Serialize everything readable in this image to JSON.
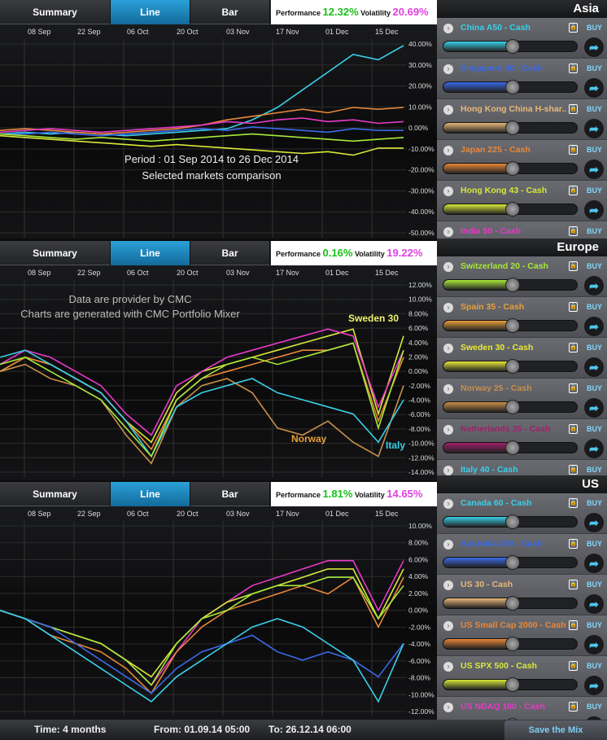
{
  "tabs": [
    "Summary",
    "Line",
    "Bar"
  ],
  "perf_label": "Performance",
  "vol_label": "Volatility",
  "dates": [
    "08 Sep",
    "22 Sep",
    "06 Oct",
    "20 Oct",
    "03 Nov",
    "17 Nov",
    "01 Dec",
    "15 Dec"
  ],
  "colors": {
    "cyan": "#3ad0e8",
    "blue": "#3a6ae8",
    "orange": "#e8883a",
    "pink": "#e83ac8",
    "yellow": "#d8e83a",
    "lime": "#a8e83a",
    "gold": "#d8a83a",
    "purple": "#8a3aa8",
    "tan": "#c8904a"
  },
  "panels": [
    {
      "performance": "12.32%",
      "volatility": "20.69%",
      "annotation1": "Period : 01 Sep 2014  to 26 Dec 2014",
      "annotation2": "Selected markets comparison",
      "chart_data": {
        "type": "line",
        "x_labels": [
          "08 Sep",
          "22 Sep",
          "06 Oct",
          "20 Oct",
          "03 Nov",
          "17 Nov",
          "01 Dec",
          "15 Dec"
        ],
        "y_ticks": [
          "40.00%",
          "30.00%",
          "20.00%",
          "10.00%",
          "0.00%",
          "-10.00%",
          "-20.00%",
          "-30.00%",
          "-40.00%",
          "-50.00%"
        ],
        "ylim": [
          -55,
          50
        ],
        "series": [
          {
            "color": "#3ad0e8",
            "values": [
              0,
              1,
              0,
              1,
              0,
              -1,
              0,
              1,
              2,
              3,
              8,
              15,
              25,
              35,
              45,
              42,
              50
            ]
          },
          {
            "color": "#e8883a",
            "values": [
              2,
              3,
              2,
              1,
              0,
              1,
              2,
              3,
              5,
              8,
              10,
              12,
              14,
              12,
              15,
              14,
              15
            ]
          },
          {
            "color": "#e83ac8",
            "values": [
              1,
              2,
              3,
              2,
              1,
              2,
              3,
              4,
              5,
              7,
              6,
              8,
              9,
              7,
              8,
              6,
              7
            ]
          },
          {
            "color": "#3a6ae8",
            "values": [
              0,
              0,
              1,
              0,
              -1,
              0,
              1,
              2,
              3,
              2,
              4,
              3,
              2,
              1,
              3,
              2,
              2
            ]
          },
          {
            "color": "#a8e83a",
            "values": [
              0,
              -1,
              -2,
              -3,
              -2,
              -3,
              -4,
              -3,
              -2,
              -1,
              0,
              -1,
              -2,
              -3,
              -4,
              -3,
              -2
            ]
          },
          {
            "color": "#d8e83a",
            "values": [
              -1,
              -2,
              -3,
              -4,
              -5,
              -6,
              -7,
              -6,
              -7,
              -8,
              -9,
              -10,
              -11,
              -10,
              -12,
              -8,
              -8
            ]
          }
        ]
      }
    },
    {
      "performance": "0.16%",
      "volatility": "19.22%",
      "annotation1": "Data are provider by CMC",
      "annotation2": "Charts are generated with CMC Portfolio Mixer",
      "labels": [
        "Sweden 30",
        "Norway",
        "Italy"
      ],
      "chart_data": {
        "type": "line",
        "x_labels": [
          "08 Sep",
          "22 Sep",
          "06 Oct",
          "20 Oct",
          "03 Nov",
          "17 Nov",
          "01 Dec",
          "15 Dec"
        ],
        "y_ticks": [
          "12.00%",
          "10.00%",
          "8.00%",
          "6.00%",
          "4.00%",
          "2.00%",
          "0.00%",
          "-2.00%",
          "-4.00%",
          "-6.00%",
          "-8.00%",
          "-10.00%",
          "-12.00%",
          "-14.00%"
        ],
        "ylim": [
          -14,
          12
        ],
        "series": [
          {
            "color": "#d8e83a",
            "values": [
              0,
              2,
              1,
              -1,
              -3,
              -7,
              -10,
              -3,
              0,
              1,
              2,
              3,
              4,
              5,
              6,
              -6,
              5
            ]
          },
          {
            "color": "#e83ac8",
            "values": [
              1,
              3,
              2,
              0,
              -2,
              -6,
              -9,
              -2,
              0,
              2,
              3,
              4,
              5,
              6,
              5,
              -5,
              3
            ]
          },
          {
            "color": "#e8883a",
            "values": [
              0,
              2,
              1,
              -1,
              -3,
              -7,
              -11,
              -4,
              -1,
              0,
              1,
              2,
              3,
              3,
              4,
              -7,
              2
            ]
          },
          {
            "color": "#c8904a",
            "values": [
              0,
              1,
              -1,
              -2,
              -4,
              -9,
              -13,
              -5,
              -2,
              -1,
              -3,
              -8,
              -9,
              -7,
              -10,
              -12,
              -2
            ]
          },
          {
            "color": "#3ad0e8",
            "values": [
              2,
              3,
              1,
              -1,
              -3,
              -7,
              -12,
              -5,
              -3,
              -2,
              -1,
              -3,
              -4,
              -5,
              -6,
              -10,
              -4
            ]
          },
          {
            "color": "#a8e83a",
            "values": [
              1,
              2,
              0,
              -2,
              -4,
              -8,
              -12,
              -4,
              -1,
              1,
              2,
              1,
              2,
              3,
              4,
              -8,
              3
            ]
          }
        ]
      }
    },
    {
      "performance": "1.81%",
      "volatility": "14.65%",
      "chart_data": {
        "type": "line",
        "x_labels": [
          "08 Sep",
          "22 Sep",
          "06 Oct",
          "20 Oct",
          "03 Nov",
          "17 Nov",
          "01 Dec",
          "15 Dec"
        ],
        "y_ticks": [
          "10.00%",
          "8.00%",
          "6.00%",
          "4.00%",
          "2.00%",
          "0.00%",
          "-2.00%",
          "-4.00%",
          "-6.00%",
          "-8.00%",
          "-10.00%",
          "-12.00%"
        ],
        "ylim": [
          -12,
          10
        ],
        "series": [
          {
            "color": "#e83ac8",
            "values": [
              0,
              -1,
              -2,
              -3,
              -4,
              -6,
              -9,
              -5,
              -1,
              1,
              3,
              4,
              5,
              6,
              6,
              0,
              6
            ]
          },
          {
            "color": "#d8e83a",
            "values": [
              0,
              -1,
              -2,
              -3,
              -4,
              -6,
              -8,
              -4,
              -1,
              1,
              2,
              3,
              4,
              5,
              5,
              -1,
              5
            ]
          },
          {
            "color": "#e8883a",
            "values": [
              0,
              -1,
              -3,
              -4,
              -5,
              -7,
              -10,
              -5,
              -2,
              0,
              1,
              2,
              3,
              2,
              4,
              -2,
              4
            ]
          },
          {
            "color": "#a8e83a",
            "values": [
              0,
              -1,
              -2,
              -3,
              -4,
              -6,
              -9,
              -4,
              -1,
              0,
              2,
              3,
              3,
              4,
              4,
              -1,
              3
            ]
          },
          {
            "color": "#3a6ae8",
            "values": [
              0,
              -1,
              -2,
              -4,
              -6,
              -8,
              -10,
              -7,
              -5,
              -4,
              -3,
              -5,
              -6,
              -5,
              -6,
              -8,
              -4
            ]
          },
          {
            "color": "#3ad0e8",
            "values": [
              0,
              -1,
              -3,
              -5,
              -7,
              -9,
              -11,
              -8,
              -6,
              -4,
              -2,
              -1,
              -2,
              -4,
              -6,
              -11,
              -4
            ]
          }
        ]
      }
    }
  ],
  "sides": [
    {
      "title": "Asia",
      "markets": [
        {
          "name": "China A50 - Cash",
          "color": "#3ad0e8",
          "level": 0.52,
          "buy": "BUY"
        },
        {
          "name": "Singapore 30 - Cash",
          "color": "#3a6ae8",
          "level": 0.52,
          "buy": "BUY"
        },
        {
          "name": "Hong Kong China H-shar...",
          "color": "#e8b87a",
          "level": 0.52,
          "buy": "BUY"
        },
        {
          "name": "Japan 225 - Cash",
          "color": "#e8883a",
          "level": 0.52,
          "buy": "BUY"
        },
        {
          "name": "Hong Kong 43 - Cash",
          "color": "#d8e83a",
          "level": 0.52,
          "buy": "BUY"
        },
        {
          "name": "India 50 - Cash",
          "color": "#e83ac8",
          "level": 0.52,
          "buy": "BUY"
        }
      ]
    },
    {
      "title": "Europe",
      "markets": [
        {
          "name": "Switzerland 20 - Cash",
          "color": "#a8e83a",
          "level": 0.52,
          "buy": "BUY"
        },
        {
          "name": "Spain 35 - Cash",
          "color": "#e8a03a",
          "level": 0.52,
          "buy": "BUY"
        },
        {
          "name": "Sweden 30 - Cash",
          "color": "#e8e83a",
          "level": 0.52,
          "buy": "BUY"
        },
        {
          "name": "Norway 25 - Cash",
          "color": "#c8904a",
          "level": 0.52,
          "buy": "BUY"
        },
        {
          "name": "Netherlands 25 - Cash",
          "color": "#a0206a",
          "level": 0.52,
          "buy": "BUY"
        },
        {
          "name": "Italy 40 - Cash",
          "color": "#3ad0e8",
          "level": 0.52,
          "buy": "BUY"
        }
      ]
    },
    {
      "title": "US",
      "markets": [
        {
          "name": "Canada 60 - Cash",
          "color": "#3ad0e8",
          "level": 0.52,
          "buy": "BUY"
        },
        {
          "name": "Australia 200 - Cash",
          "color": "#3a6ae8",
          "level": 0.52,
          "buy": "BUY"
        },
        {
          "name": "US 30 - Cash",
          "color": "#e8b87a",
          "level": 0.52,
          "buy": "BUY"
        },
        {
          "name": "US Small Cap 2000 - Cash",
          "color": "#e8883a",
          "level": 0.52,
          "buy": "BUY"
        },
        {
          "name": "US SPX 500 - Cash",
          "color": "#d8e83a",
          "level": 0.52,
          "buy": "BUY"
        },
        {
          "name": "US NDAQ 100 - Cash",
          "color": "#e83ac8",
          "level": 0.52,
          "buy": "BUY"
        }
      ]
    }
  ],
  "footer": {
    "time": "Time: 4 months",
    "from": "From: 01.09.14 05:00",
    "to": "To: 26.12.14 06:00",
    "save": "Save the Mix"
  }
}
